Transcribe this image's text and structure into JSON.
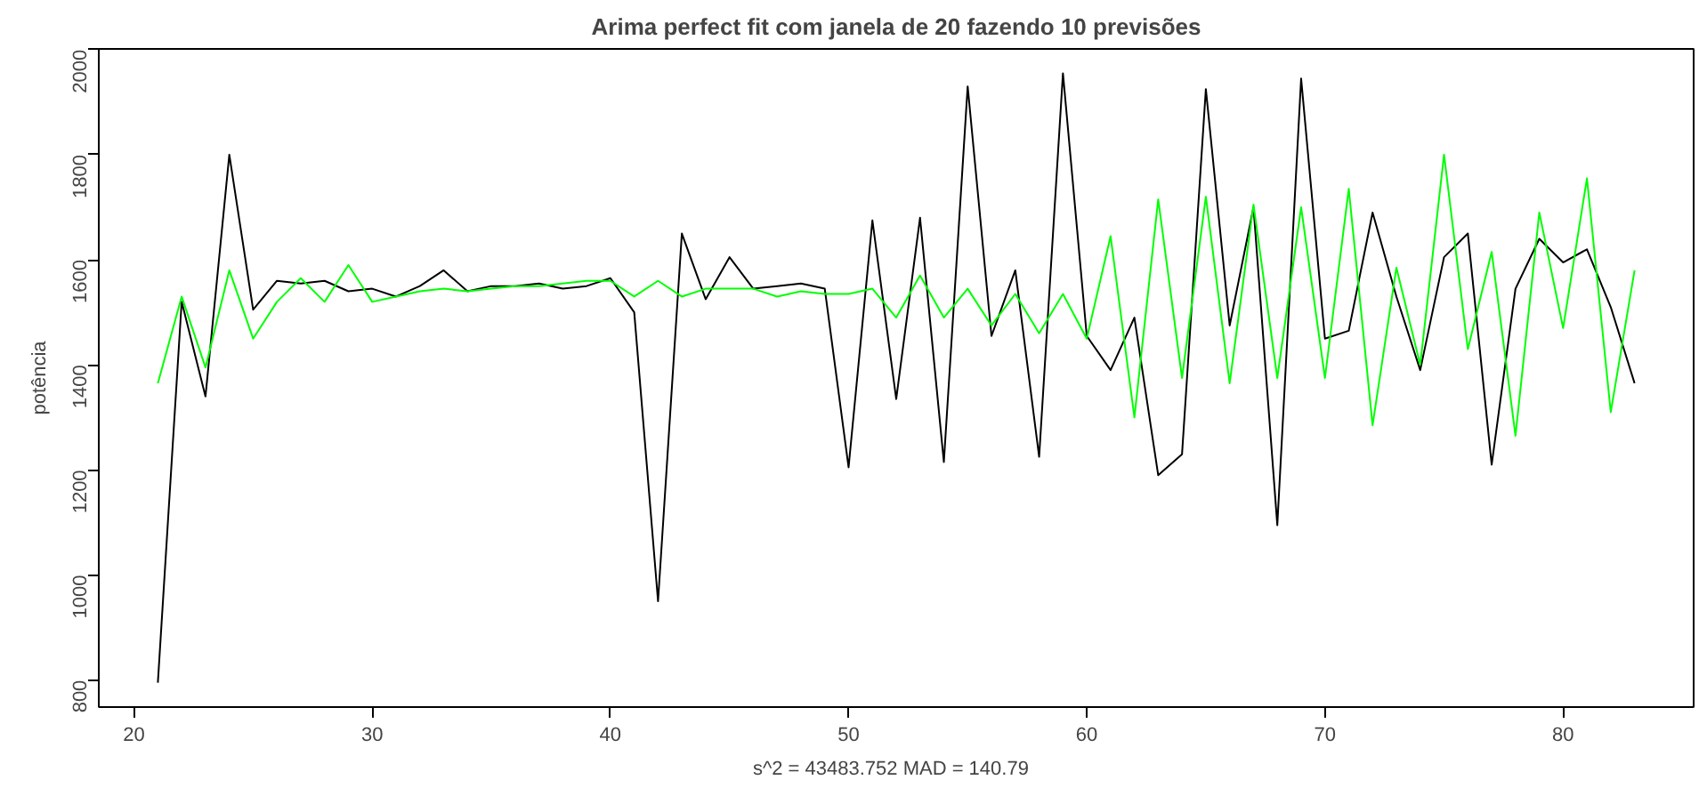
{
  "chart_data": {
    "type": "line",
    "title": "Arima perfect fit com janela de 20 fazendo 10 previsões",
    "ylabel": "potência",
    "annotations": [
      "s^2 = 43483.752   MAD = 140.79"
    ],
    "x": [
      21,
      22,
      23,
      24,
      25,
      26,
      27,
      28,
      29,
      30,
      31,
      32,
      33,
      34,
      35,
      36,
      37,
      38,
      39,
      40,
      41,
      42,
      43,
      44,
      45,
      46,
      47,
      48,
      49,
      50,
      51,
      52,
      53,
      54,
      55,
      56,
      57,
      58,
      59,
      60,
      61,
      62,
      63,
      64,
      65,
      66,
      67,
      68,
      69,
      70,
      71,
      72,
      73,
      74,
      75,
      76,
      77,
      78,
      79,
      80,
      81,
      82,
      83
    ],
    "series": [
      {
        "color": "#000000",
        "values": [
          795,
          1520,
          1340,
          1800,
          1505,
          1560,
          1555,
          1560,
          1540,
          1545,
          1530,
          1550,
          1580,
          1540,
          1550,
          1550,
          1555,
          1545,
          1550,
          1565,
          1500,
          950,
          1650,
          1525,
          1605,
          1545,
          1550,
          1555,
          1545,
          1205,
          1675,
          1335,
          1680,
          1215,
          1930,
          1455,
          1580,
          1225,
          1955,
          1455,
          1390,
          1490,
          1190,
          1230,
          1925,
          1475,
          1700,
          1095,
          1945,
          1450,
          1465,
          1690,
          1530,
          1390,
          1605,
          1650,
          1210,
          1545,
          1640,
          1595,
          1620,
          1510,
          1365
        ]
      },
      {
        "color": "#00ff00",
        "values": [
          1365,
          1530,
          1395,
          1580,
          1450,
          1520,
          1565,
          1520,
          1590,
          1520,
          1530,
          1540,
          1545,
          1540,
          1545,
          1550,
          1550,
          1555,
          1560,
          1560,
          1530,
          1560,
          1530,
          1545,
          1545,
          1545,
          1530,
          1540,
          1535,
          1535,
          1545,
          1490,
          1570,
          1490,
          1545,
          1475,
          1535,
          1460,
          1535,
          1450,
          1645,
          1300,
          1715,
          1375,
          1720,
          1365,
          1705,
          1375,
          1700,
          1375,
          1735,
          1285,
          1585,
          1400,
          1800,
          1430,
          1615,
          1265,
          1690,
          1470,
          1755,
          1310,
          1580
        ]
      }
    ],
    "xlim": [
      18.52,
      85.48
    ],
    "ylim": [
      748.6,
      2001.4
    ],
    "xticks": [
      20,
      30,
      40,
      50,
      60,
      70,
      80
    ],
    "yticks": [
      800,
      1000,
      1200,
      1400,
      1600,
      1800,
      2000
    ],
    "grid": false,
    "marker": "none",
    "line_style": "solid"
  }
}
